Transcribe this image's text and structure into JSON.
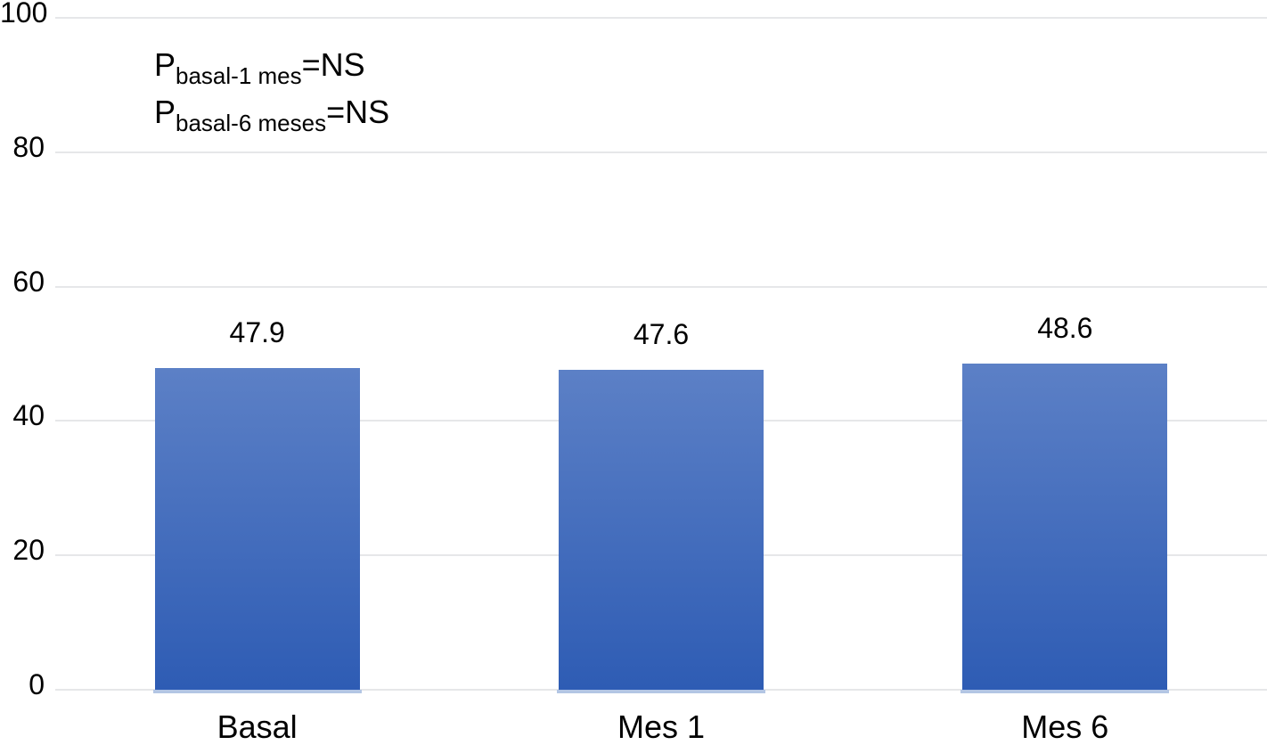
{
  "chart_data": {
    "type": "bar",
    "title": "",
    "xlabel": "",
    "ylabel": "",
    "categories": [
      "Basal",
      "Mes 1",
      "Mes 6"
    ],
    "values": [
      47.9,
      47.6,
      48.6
    ],
    "value_labels": [
      "47.9",
      "47.6",
      "48.6"
    ],
    "yticks": [
      "0",
      "20",
      "40",
      "60",
      "80",
      "100"
    ],
    "ylim": [
      0,
      100
    ],
    "grid": true,
    "legend": false,
    "annotations": [
      {
        "base": "P",
        "subscript": "basal-1 mes",
        "rest": "=NS"
      },
      {
        "base": "P",
        "subscript": "basal-6 meses",
        "rest": "=NS"
      }
    ],
    "colors": {
      "bar_gradient_top": "#5C80C6",
      "bar_gradient_bottom": "#2E5CB4",
      "bar_base_strip": "#B3C6E4",
      "gridline": "#E6E7E9",
      "text": "#000000",
      "background": "#FFFFFF"
    }
  }
}
